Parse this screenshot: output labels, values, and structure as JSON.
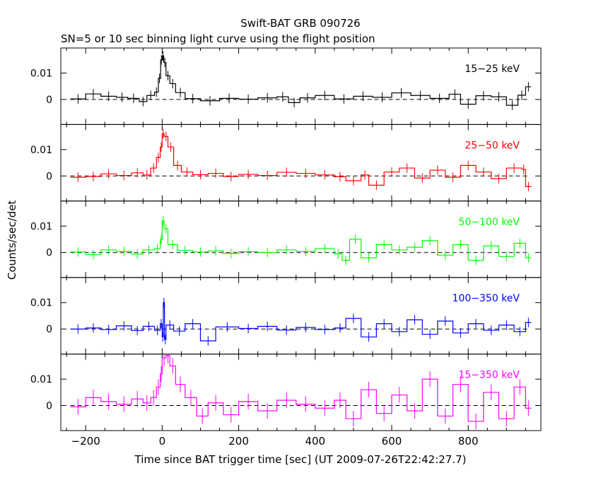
{
  "title": "Swift-BAT GRB 090726",
  "subtitle": "SN=5 or 10 sec binning light curve using the flight position",
  "xlabel": "Time since BAT trigger time [sec] (UT 2009-07-26T22:42:27.7)",
  "ylabel": "Counts/sec/det",
  "chart_data": {
    "type": "line",
    "title": "Swift-BAT GRB 090726",
    "subtitle": "SN=5 or 10 sec binning light curve using the flight position",
    "xlabel": "Time since BAT trigger time [sec] (UT 2009-07-26T22:42:27.7)",
    "ylabel": "Counts/sec/det",
    "xlim": [
      -265,
      990
    ],
    "x_ticks": [
      -200,
      0,
      200,
      400,
      600,
      800
    ],
    "x_tick_labels": [
      "−200",
      "0",
      "200",
      "400",
      "600",
      "800"
    ],
    "ylim": [
      -0.0095,
      0.0195
    ],
    "y_ticks": [
      0,
      0.01
    ],
    "y_tick_labels": [
      "0",
      "0.01"
    ],
    "zero_line": "dashed",
    "grid": false,
    "panels": [
      {
        "name": "15−25 keV",
        "color": "#000000",
        "points": [
          [
            -240,
            0.0002
          ],
          [
            -200,
            0.0021
          ],
          [
            -160,
            0.0012
          ],
          [
            -120,
            0.0008
          ],
          [
            -90,
            0.0004
          ],
          [
            -60,
            -0.0008
          ],
          [
            -40,
            0.0015
          ],
          [
            -20,
            0.0028
          ],
          [
            -10,
            0.008
          ],
          [
            -4,
            0.015
          ],
          [
            0,
            0.0165
          ],
          [
            4,
            0.014
          ],
          [
            10,
            0.009
          ],
          [
            20,
            0.006
          ],
          [
            35,
            0.0026
          ],
          [
            60,
            0.0003
          ],
          [
            100,
            -0.0005
          ],
          [
            150,
            0.0004
          ],
          [
            200,
            0.0001
          ],
          [
            250,
            0.0006
          ],
          [
            300,
            0.001
          ],
          [
            330,
            -0.0012
          ],
          [
            360,
            0.0006
          ],
          [
            400,
            0.0015
          ],
          [
            450,
            0.0002
          ],
          [
            500,
            0.0012
          ],
          [
            550,
            0.0008
          ],
          [
            600,
            0.0025
          ],
          [
            650,
            0.0015
          ],
          [
            700,
            0.0004
          ],
          [
            750,
            0.002
          ],
          [
            780,
            -0.0018
          ],
          [
            820,
            0.0014
          ],
          [
            860,
            0.001
          ],
          [
            900,
            -0.0022
          ],
          [
            930,
            0.0016
          ],
          [
            950,
            0.0048
          ]
        ]
      },
      {
        "name": "25−50 keV",
        "color": "#ff0000",
        "points": [
          [
            -240,
            -0.0005
          ],
          [
            -200,
            -0.0002
          ],
          [
            -160,
            0.0008
          ],
          [
            -120,
            0.0002
          ],
          [
            -80,
            0.0012
          ],
          [
            -50,
            0.0004
          ],
          [
            -30,
            0.003
          ],
          [
            -15,
            0.007
          ],
          [
            -5,
            0.011
          ],
          [
            0,
            0.016
          ],
          [
            5,
            0.015
          ],
          [
            15,
            0.011
          ],
          [
            30,
            0.004
          ],
          [
            50,
            0.0015
          ],
          [
            80,
            0.0005
          ],
          [
            120,
            0.001
          ],
          [
            160,
            -0.0002
          ],
          [
            200,
            0.0006
          ],
          [
            250,
            0.0002
          ],
          [
            300,
            0.0014
          ],
          [
            350,
            0.001
          ],
          [
            400,
            0.0004
          ],
          [
            450,
            -0.0003
          ],
          [
            480,
            -0.0018
          ],
          [
            520,
            0.0004
          ],
          [
            540,
            -0.0035
          ],
          [
            580,
            0.0015
          ],
          [
            620,
            0.003
          ],
          [
            660,
            -0.0008
          ],
          [
            700,
            0.0022
          ],
          [
            740,
            -0.0005
          ],
          [
            780,
            0.004
          ],
          [
            820,
            0.0015
          ],
          [
            860,
            -0.001
          ],
          [
            900,
            0.003
          ],
          [
            940,
            0.0025
          ],
          [
            950,
            -0.004
          ]
        ]
      },
      {
        "name": "50−100 keV",
        "color": "#00ff00",
        "points": [
          [
            -240,
            0.0002
          ],
          [
            -200,
            -0.0008
          ],
          [
            -160,
            0.001
          ],
          [
            -120,
            0.0004
          ],
          [
            -80,
            -0.0006
          ],
          [
            -50,
            0.001
          ],
          [
            -20,
            0.0015
          ],
          [
            -5,
            0.005
          ],
          [
            0,
            0.012
          ],
          [
            5,
            0.009
          ],
          [
            15,
            0.003
          ],
          [
            40,
            0.0008
          ],
          [
            80,
            0.0002
          ],
          [
            120,
            0.0006
          ],
          [
            160,
            -0.0004
          ],
          [
            200,
            0.0003
          ],
          [
            250,
            0.0
          ],
          [
            300,
            0.001
          ],
          [
            350,
            0.0004
          ],
          [
            400,
            0.0015
          ],
          [
            450,
            -0.0005
          ],
          [
            470,
            -0.003
          ],
          [
            490,
            0.005
          ],
          [
            520,
            -0.002
          ],
          [
            560,
            0.003
          ],
          [
            600,
            0.001
          ],
          [
            640,
            0.002
          ],
          [
            680,
            0.0045
          ],
          [
            720,
            -0.001
          ],
          [
            760,
            0.003
          ],
          [
            800,
            -0.003
          ],
          [
            840,
            0.0025
          ],
          [
            880,
            -0.0015
          ],
          [
            920,
            0.0035
          ],
          [
            950,
            -0.002
          ]
        ]
      },
      {
        "name": "100−350 keV",
        "color": "#0000ff",
        "points": [
          [
            -240,
            0.0
          ],
          [
            -200,
            0.0004
          ],
          [
            -160,
            -0.0002
          ],
          [
            -120,
            0.0012
          ],
          [
            -80,
            -0.0006
          ],
          [
            -50,
            0.001
          ],
          [
            -20,
            -0.0005
          ],
          [
            -5,
            0.002
          ],
          [
            0,
            -0.003
          ],
          [
            3,
            0.01
          ],
          [
            6,
            -0.004
          ],
          [
            10,
            0.0015
          ],
          [
            30,
            -0.0008
          ],
          [
            60,
            0.002
          ],
          [
            100,
            -0.0045
          ],
          [
            140,
            0.0008
          ],
          [
            200,
            0.0002
          ],
          [
            250,
            0.001
          ],
          [
            300,
            -0.0004
          ],
          [
            350,
            0.0006
          ],
          [
            400,
            -0.0002
          ],
          [
            450,
            0.0004
          ],
          [
            480,
            0.004
          ],
          [
            520,
            -0.003
          ],
          [
            560,
            0.002
          ],
          [
            600,
            -0.001
          ],
          [
            640,
            0.0035
          ],
          [
            680,
            -0.002
          ],
          [
            720,
            0.003
          ],
          [
            760,
            -0.0015
          ],
          [
            800,
            0.002
          ],
          [
            840,
            -0.0005
          ],
          [
            880,
            0.0015
          ],
          [
            920,
            -0.001
          ],
          [
            950,
            0.0025
          ]
        ]
      },
      {
        "name": "15−350 keV",
        "color": "#ff00ff",
        "points": [
          [
            -240,
            -0.0005
          ],
          [
            -200,
            0.003
          ],
          [
            -160,
            0.0015
          ],
          [
            -120,
            0.0005
          ],
          [
            -80,
            0.0025
          ],
          [
            -50,
            0.001
          ],
          [
            -30,
            0.003
          ],
          [
            -15,
            0.007
          ],
          [
            -5,
            0.012
          ],
          [
            0,
            0.018
          ],
          [
            10,
            0.019
          ],
          [
            20,
            0.015
          ],
          [
            35,
            0.008
          ],
          [
            60,
            0.003
          ],
          [
            90,
            -0.004
          ],
          [
            120,
            0.001
          ],
          [
            160,
            -0.0035
          ],
          [
            200,
            0.0015
          ],
          [
            250,
            -0.002
          ],
          [
            300,
            0.002
          ],
          [
            350,
            0.0005
          ],
          [
            400,
            -0.001
          ],
          [
            450,
            0.002
          ],
          [
            480,
            -0.005
          ],
          [
            520,
            0.006
          ],
          [
            560,
            -0.003
          ],
          [
            600,
            0.004
          ],
          [
            640,
            -0.002
          ],
          [
            680,
            0.01
          ],
          [
            720,
            -0.004
          ],
          [
            760,
            0.008
          ],
          [
            800,
            -0.006
          ],
          [
            840,
            0.005
          ],
          [
            880,
            -0.005
          ],
          [
            920,
            0.007
          ],
          [
            950,
            -0.001
          ]
        ]
      }
    ]
  }
}
